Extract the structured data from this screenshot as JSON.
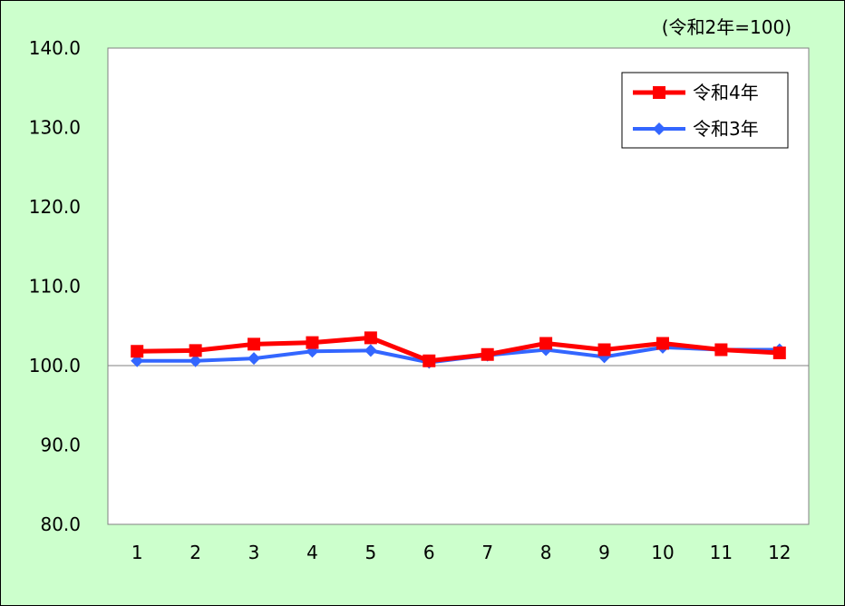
{
  "chart_data": {
    "type": "line",
    "unit_note": "(令和2年=100)",
    "categories": [
      "1",
      "2",
      "3",
      "4",
      "5",
      "6",
      "7",
      "8",
      "9",
      "10",
      "11",
      "12"
    ],
    "ylim": [
      80,
      140
    ],
    "yticks": [
      "80.0",
      "90.0",
      "100.0",
      "110.0",
      "120.0",
      "130.0",
      "140.0"
    ],
    "ytick_values": [
      80,
      90,
      100,
      110,
      120,
      130,
      140
    ],
    "reference_line": 100,
    "legend_position": "top-right",
    "series": [
      {
        "name": "令和4年",
        "color": "#ff0000",
        "marker": "square",
        "values": [
          101.8,
          101.9,
          102.7,
          102.9,
          103.5,
          100.6,
          101.4,
          102.8,
          102.0,
          102.8,
          102.0,
          101.6
        ]
      },
      {
        "name": "令和3年",
        "color": "#3366ff",
        "marker": "diamond",
        "values": [
          100.6,
          100.6,
          100.9,
          101.8,
          101.9,
          100.4,
          101.3,
          102.0,
          101.1,
          102.3,
          102.0,
          102.0
        ]
      }
    ]
  }
}
